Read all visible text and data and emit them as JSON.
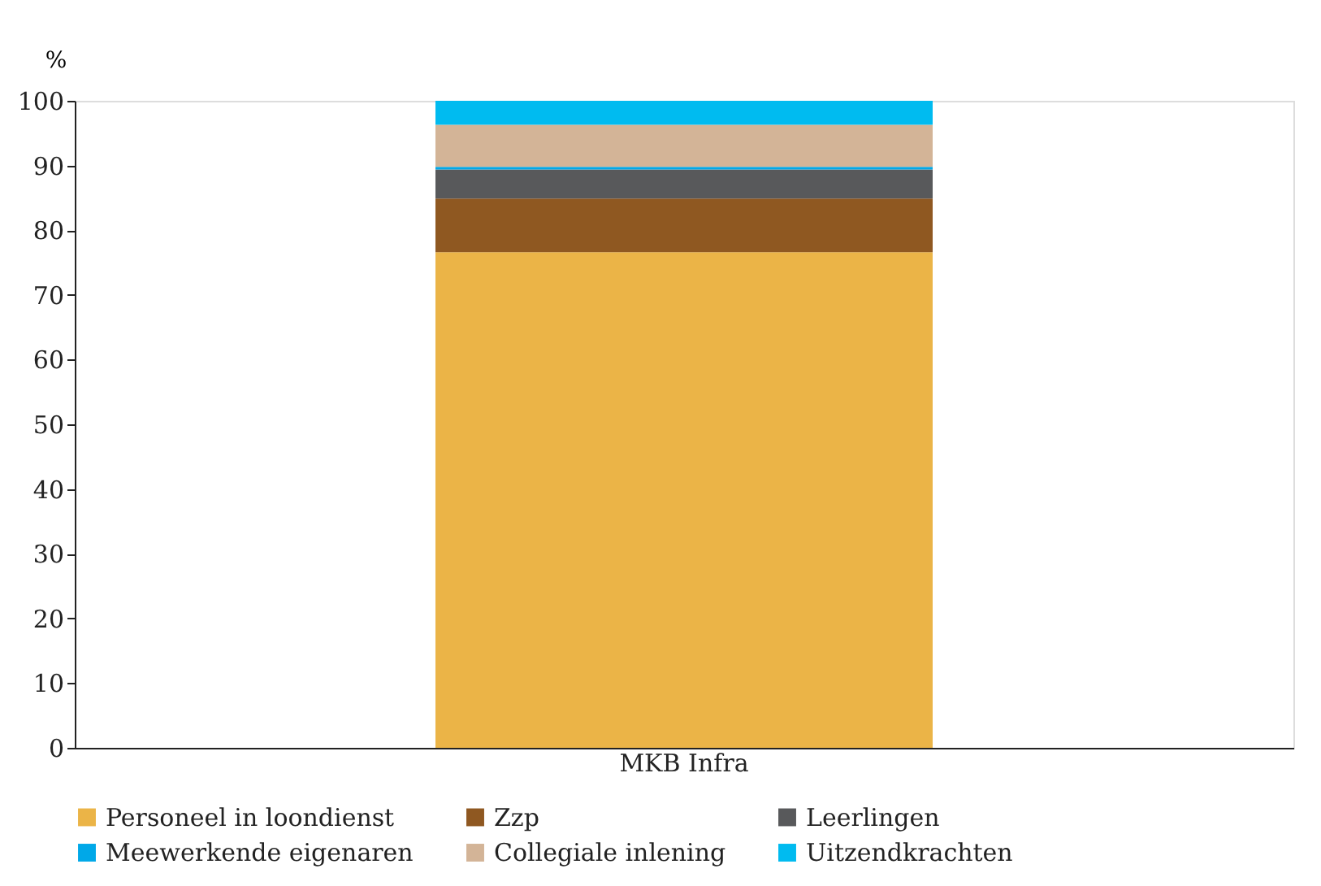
{
  "chart_data": {
    "type": "bar",
    "stacked": true,
    "ylabel": "%",
    "categories": [
      "MKB Infra"
    ],
    "series": [
      {
        "name": "Personeel in loondienst",
        "color": "#ebb447",
        "values": [
          76.6
        ]
      },
      {
        "name": "Zzp",
        "color": "#8f5821",
        "values": [
          8.3
        ]
      },
      {
        "name": "Leerlingen",
        "color": "#58595b",
        "values": [
          4.5
        ]
      },
      {
        "name": "Meewerkende eigenaren",
        "color": "#00a8e8",
        "values": [
          0.4
        ]
      },
      {
        "name": "Collegiale inlening",
        "color": "#d3b497",
        "values": [
          6.5
        ]
      },
      {
        "name": "Uitzendkrachten",
        "color": "#00bbf0",
        "values": [
          3.7
        ]
      }
    ],
    "ylim": [
      0,
      100
    ],
    "yticks": [
      0,
      10,
      20,
      30,
      40,
      50,
      60,
      70,
      80,
      90,
      100
    ],
    "grid": false,
    "legend": "bottom"
  }
}
